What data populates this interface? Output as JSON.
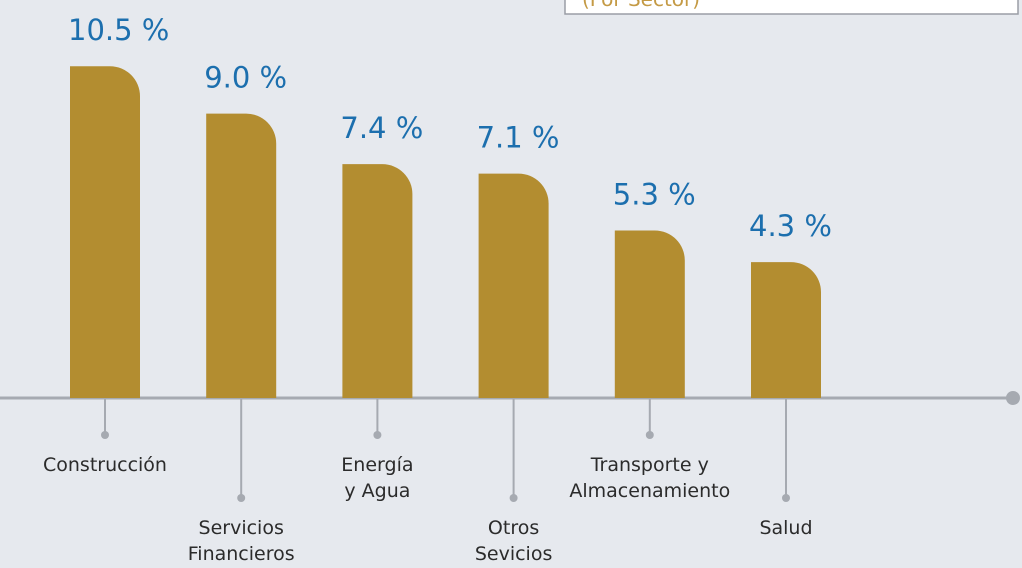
{
  "chart_data": {
    "type": "bar",
    "subtitle": "(Por Sector)",
    "categories": [
      [
        "Construcción"
      ],
      [
        "Servicios",
        "Financieros"
      ],
      [
        "Energía",
        "y Agua"
      ],
      [
        "Otros",
        "Sevicios"
      ],
      [
        "Transporte y",
        "Almacenamiento"
      ],
      [
        "Salud"
      ]
    ],
    "values": [
      10.5,
      9.0,
      7.4,
      7.1,
      5.3,
      4.3
    ],
    "value_labels": [
      "10.5 %",
      "9.0 %",
      "7.4 %",
      "7.1 %",
      "5.3 %",
      "4.3 %"
    ],
    "color": "#b38d30"
  }
}
